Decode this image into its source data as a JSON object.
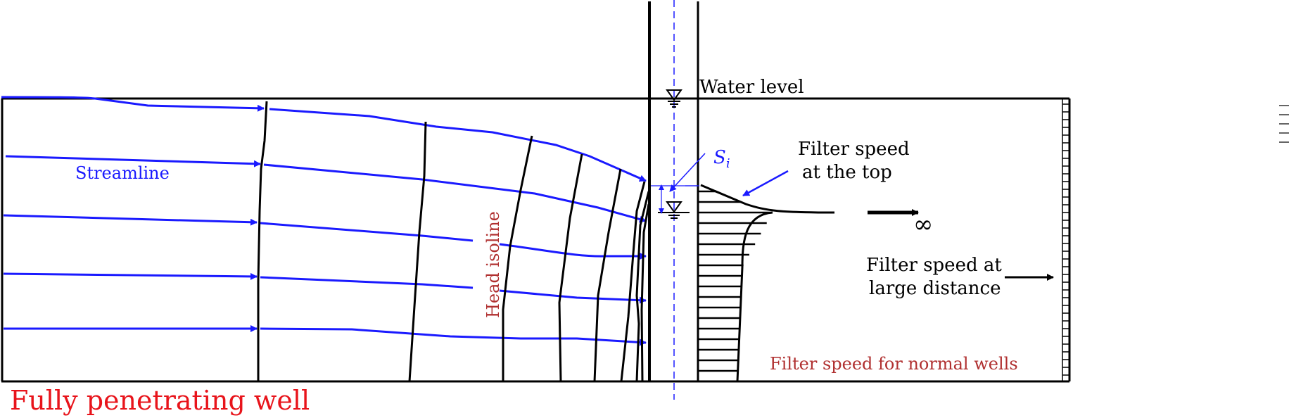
{
  "labels": {
    "water_level": "Water level",
    "streamline": "Streamline",
    "head_isoline": "Head isoline",
    "filter_speed_top_line1": "Filter speed",
    "filter_speed_top_line2": "at the top",
    "filter_speed_far_line1": "Filter speed at",
    "filter_speed_far_line2": "large distance",
    "filter_speed_normal": "Filter speed for normal wells",
    "title": "Fully penetrating well",
    "drawdown_symbol": "S",
    "drawdown_subscript": "i",
    "infinity": "∞"
  },
  "colors": {
    "streamline": "#1a1aff",
    "outline": "#000000",
    "head_label": "#b03030",
    "title": "#e8141b"
  },
  "icons": {
    "water_level_marker": "inverted-triangle-water-symbol",
    "arrow": "arrowhead"
  }
}
